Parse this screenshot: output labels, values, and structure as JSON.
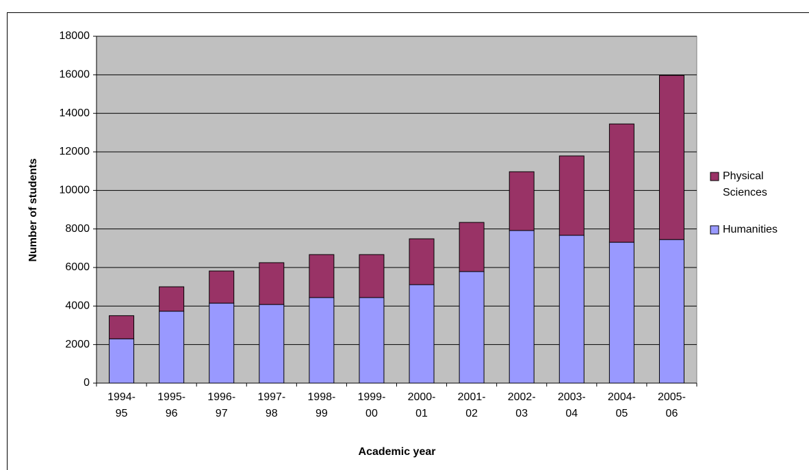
{
  "chart_data": {
    "type": "stacked-bar",
    "x_label": "Academic year",
    "y_label": "Number of students",
    "categories": [
      "1994-95",
      "1995-96",
      "1996-97",
      "1997-98",
      "1998-99",
      "1999-00",
      "2000-01",
      "2001-02",
      "2002-03",
      "2003-04",
      "2004-05",
      "2005-06"
    ],
    "series": [
      {
        "name": "Humanities",
        "color": "#9999ff",
        "values": [
          2300,
          3730,
          4150,
          4080,
          4440,
          4440,
          5110,
          5790,
          7920,
          7670,
          7310,
          7450
        ]
      },
      {
        "name": "Physical Sciences",
        "color": "#993366",
        "values": [
          1200,
          1270,
          1670,
          2170,
          2230,
          2230,
          2380,
          2550,
          3050,
          4120,
          6140,
          8520
        ]
      }
    ],
    "ylim": [
      0,
      18000
    ],
    "yticks": [
      0,
      2000,
      4000,
      6000,
      8000,
      10000,
      12000,
      14000,
      16000,
      18000
    ],
    "grid": true,
    "legend": "right",
    "plot_background": "#c0c0c0"
  }
}
